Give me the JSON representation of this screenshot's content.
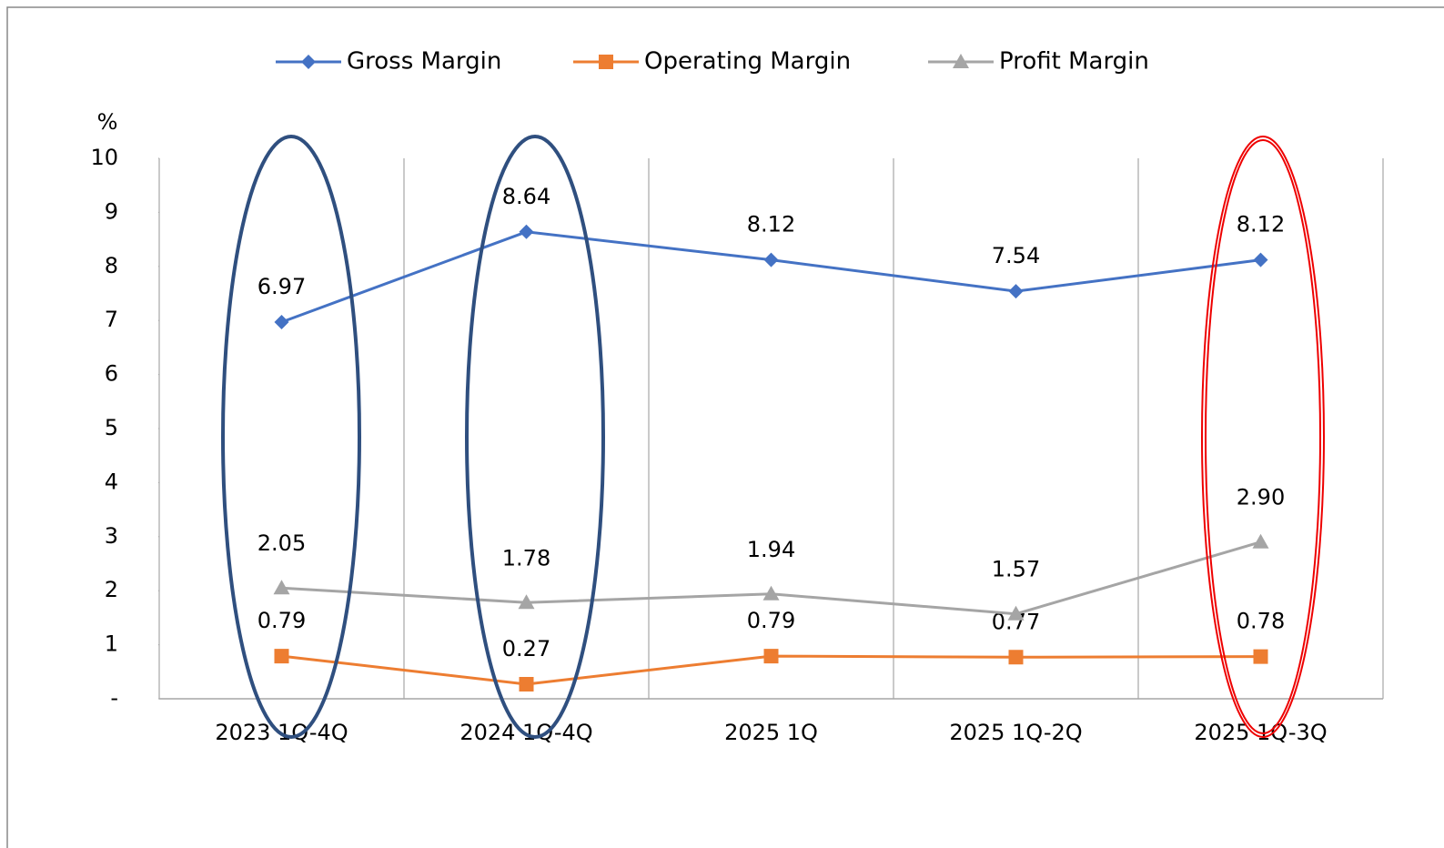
{
  "chart_data": {
    "type": "line",
    "y_label": "%",
    "categories": [
      "2023 1Q-4Q",
      "2024 1Q-4Q",
      "2025 1Q",
      "2025 1Q-2Q",
      "2025 1Q-3Q"
    ],
    "series": [
      {
        "name": "Gross Margin",
        "color": "#4472c4",
        "marker": "diamond",
        "values": [
          6.97,
          8.64,
          8.12,
          7.54,
          8.12
        ],
        "value_labels": [
          "6.97",
          "8.64",
          "8.12",
          "7.54",
          "8.12"
        ]
      },
      {
        "name": "Operating Margin",
        "color": "#ed7d31",
        "marker": "square",
        "values": [
          0.79,
          0.27,
          0.79,
          0.77,
          0.78
        ],
        "value_labels": [
          "0.79",
          "0.27",
          "0.79",
          "0.77",
          "0.78"
        ]
      },
      {
        "name": "Profit Margin",
        "color": "#a5a5a5",
        "marker": "triangle",
        "values": [
          2.05,
          1.78,
          1.94,
          1.57,
          2.9
        ],
        "value_labels": [
          "2.05",
          "1.78",
          "1.94",
          "1.57",
          "2.90"
        ]
      }
    ],
    "ylim": [
      0,
      10
    ],
    "yticks": [
      {
        "value": 0,
        "label": "-"
      },
      1,
      2,
      3,
      4,
      5,
      6,
      7,
      8,
      9,
      10
    ],
    "grid": true,
    "legend": "top"
  }
}
